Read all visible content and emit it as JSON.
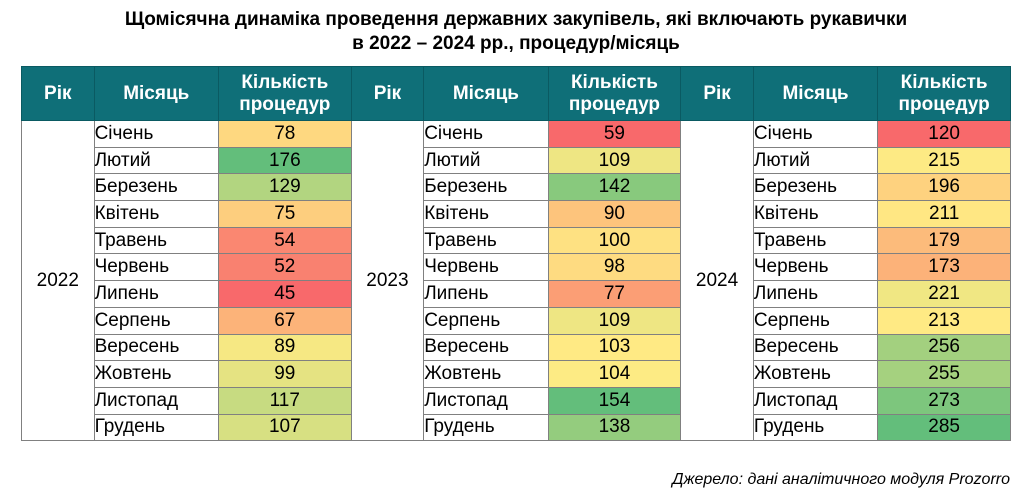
{
  "title_line1": "Щомісячна динаміка проведення державних закупівель, які включають рукавички",
  "title_line2": "в 2022 – 2024 рр., процедур/місяць",
  "source": "Джерело: дані аналітичного модуля Prozorro",
  "chart_data": {
    "type": "table",
    "title": "Щомісячна динаміка проведення державних закупівель, які включають рукавички в 2022 – 2024 рр., процедур/місяць",
    "columns": [
      "Рік",
      "Місяць",
      "Кількість процедур"
    ],
    "months": [
      "Січень",
      "Лютий",
      "Березень",
      "Квітень",
      "Травень",
      "Червень",
      "Липень",
      "Серпень",
      "Вересень",
      "Жовтень",
      "Листопад",
      "Грудень"
    ],
    "years": [
      {
        "year": "2022",
        "values": [
          78,
          176,
          129,
          75,
          54,
          52,
          45,
          67,
          89,
          99,
          117,
          107
        ]
      },
      {
        "year": "2023",
        "values": [
          59,
          109,
          142,
          90,
          100,
          98,
          77,
          109,
          103,
          104,
          154,
          138
        ]
      },
      {
        "year": "2024",
        "values": [
          120,
          215,
          196,
          211,
          179,
          173,
          221,
          213,
          256,
          255,
          273,
          285
        ]
      }
    ],
    "color_scale": {
      "low": "#f8696b",
      "mid": "#ffeb84",
      "high": "#63be7b"
    }
  }
}
